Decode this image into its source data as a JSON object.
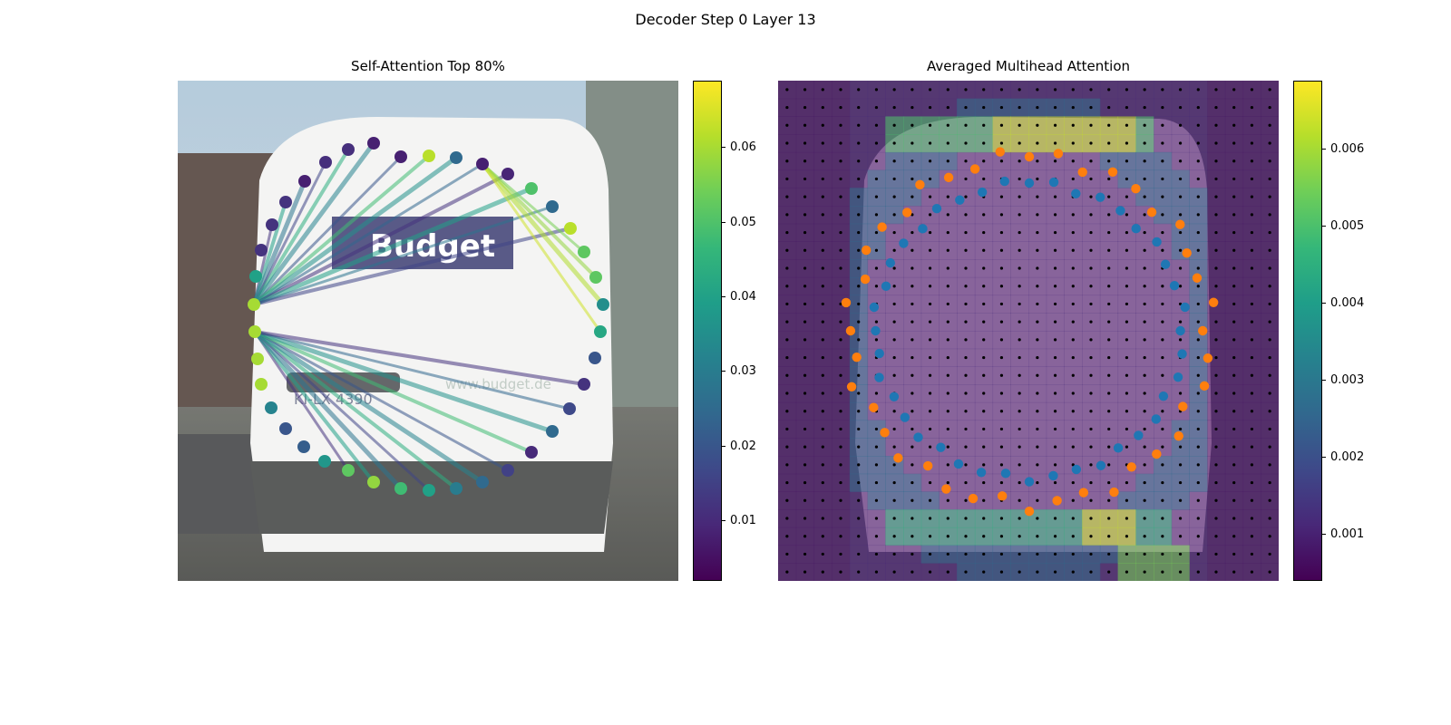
{
  "figure": {
    "title": "Decoder Step 0 Layer 13"
  },
  "chart_data": [
    {
      "type": "image+graph",
      "title": "Self-Attention Top 80%",
      "background_image": {
        "description_tokens": [
          "white van",
          "rear view",
          "street"
        ],
        "plate_text": "KI-LX 4390",
        "logo_text": "Budget",
        "web_text": "www.budget.de"
      },
      "colorbar": {
        "min": 0.002,
        "max": 0.069,
        "ticks": [
          0.01,
          0.02,
          0.03,
          0.04,
          0.05,
          0.06
        ],
        "tick_labels": [
          "0.01",
          "0.02",
          "0.03",
          "0.04",
          "0.05",
          "0.06"
        ],
        "colormap": "viridis"
      },
      "points": [
        {
          "x": 277,
          "y": 83,
          "v": 0.062
        },
        {
          "x": 307,
          "y": 85,
          "v": 0.025
        },
        {
          "x": 336,
          "y": 92,
          "v": 0.008
        },
        {
          "x": 364,
          "y": 103,
          "v": 0.009
        },
        {
          "x": 390,
          "y": 119,
          "v": 0.05
        },
        {
          "x": 413,
          "y": 139,
          "v": 0.025
        },
        {
          "x": 433,
          "y": 163,
          "v": 0.062
        },
        {
          "x": 448,
          "y": 189,
          "v": 0.052
        },
        {
          "x": 461,
          "y": 217,
          "v": 0.052
        },
        {
          "x": 469,
          "y": 247,
          "v": 0.035
        },
        {
          "x": 466,
          "y": 277,
          "v": 0.042
        },
        {
          "x": 460,
          "y": 306,
          "v": 0.02
        },
        {
          "x": 448,
          "y": 335,
          "v": 0.012
        },
        {
          "x": 432,
          "y": 362,
          "v": 0.017
        },
        {
          "x": 413,
          "y": 387,
          "v": 0.025
        },
        {
          "x": 390,
          "y": 410,
          "v": 0.01
        },
        {
          "x": 364,
          "y": 430,
          "v": 0.015
        },
        {
          "x": 336,
          "y": 443,
          "v": 0.025
        },
        {
          "x": 307,
          "y": 450,
          "v": 0.03
        },
        {
          "x": 277,
          "y": 452,
          "v": 0.04
        },
        {
          "x": 246,
          "y": 450,
          "v": 0.048
        },
        {
          "x": 216,
          "y": 443,
          "v": 0.058
        },
        {
          "x": 188,
          "y": 430,
          "v": 0.052
        },
        {
          "x": 162,
          "y": 420,
          "v": 0.037
        },
        {
          "x": 139,
          "y": 404,
          "v": 0.022
        },
        {
          "x": 119,
          "y": 384,
          "v": 0.02
        },
        {
          "x": 103,
          "y": 361,
          "v": 0.032
        },
        {
          "x": 92,
          "y": 335,
          "v": 0.06
        },
        {
          "x": 88,
          "y": 307,
          "v": 0.06
        },
        {
          "x": 85,
          "y": 277,
          "v": 0.06
        },
        {
          "x": 84,
          "y": 247,
          "v": 0.06
        },
        {
          "x": 86,
          "y": 216,
          "v": 0.04
        },
        {
          "x": 92,
          "y": 187,
          "v": 0.012
        },
        {
          "x": 104,
          "y": 159,
          "v": 0.012
        },
        {
          "x": 119,
          "y": 134,
          "v": 0.012
        },
        {
          "x": 140,
          "y": 111,
          "v": 0.008
        },
        {
          "x": 163,
          "y": 90,
          "v": 0.011
        },
        {
          "x": 188,
          "y": 76,
          "v": 0.011
        },
        {
          "x": 216,
          "y": 69,
          "v": 0.008
        },
        {
          "x": 246,
          "y": 84,
          "v": 0.008
        }
      ],
      "query_points": [
        {
          "x": 84,
          "y": 247
        },
        {
          "x": 307,
          "y": 85
        },
        {
          "x": 85,
          "y": 277
        }
      ],
      "edges": [
        {
          "from": 0,
          "to": 1,
          "v": 0.04
        },
        {
          "from": 1,
          "to": 2,
          "v": 0.05
        },
        {
          "from": 1,
          "to": 7,
          "v": 0.069
        }
      ]
    },
    {
      "type": "heatmap+scatter",
      "title": "Averaged Multihead Attention",
      "colorbar": {
        "min": 0.0004,
        "max": 0.0069,
        "ticks": [
          0.001,
          0.002,
          0.003,
          0.004,
          0.005,
          0.006
        ],
        "tick_labels": [
          "0.001",
          "0.002",
          "0.003",
          "0.004",
          "0.005",
          "0.006"
        ],
        "colormap": "viridis"
      },
      "grid": {
        "rows": 28,
        "cols": 28
      },
      "inner_points_color": "#1f77b4",
      "outer_points_color": "#ff7f0e"
    }
  ]
}
